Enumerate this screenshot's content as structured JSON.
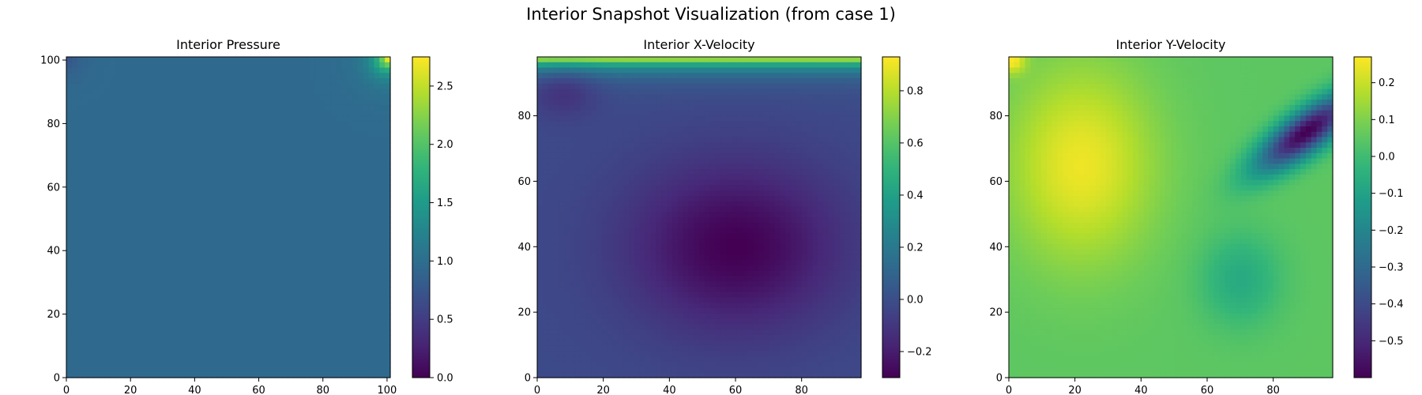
{
  "figure": {
    "title": "Interior Snapshot Visualization (from case 1)"
  },
  "chart_data": [
    {
      "type": "heatmap",
      "title": "Interior Pressure",
      "colormap": "viridis",
      "xlim": [
        0,
        101
      ],
      "ylim": [
        0,
        101
      ],
      "xticks": [
        0,
        20,
        40,
        60,
        80,
        100
      ],
      "yticks": [
        0,
        20,
        40,
        60,
        80,
        100
      ],
      "colorbar": {
        "min": 0.0,
        "max": 2.75,
        "ticks": [
          0.0,
          0.5,
          1.0,
          1.5,
          2.0,
          2.5
        ],
        "tick_labels": [
          "0.0",
          "0.5",
          "1.0",
          "1.5",
          "2.0",
          "2.5"
        ]
      },
      "field": "pressure",
      "values": {
        "background": 0.95,
        "features": [
          {
            "x": 100,
            "y": 100,
            "value": 2.75,
            "spread": 3.5
          },
          {
            "x": 0,
            "y": 100,
            "value": 0.7,
            "spread": 4
          }
        ]
      }
    },
    {
      "type": "heatmap",
      "title": "Interior X-Velocity",
      "colormap": "viridis",
      "xlim": [
        0,
        98
      ],
      "ylim": [
        0,
        98
      ],
      "xticks": [
        0,
        20,
        40,
        60,
        80
      ],
      "yticks": [
        0,
        20,
        40,
        60,
        80
      ],
      "colorbar": {
        "min": -0.3,
        "max": 0.93,
        "ticks": [
          -0.2,
          0.0,
          0.2,
          0.4,
          0.6,
          0.8
        ],
        "tick_labels": [
          "−0.2",
          "0.0",
          "0.2",
          "0.4",
          "0.6",
          "0.8"
        ]
      },
      "field": "x-velocity",
      "values": {
        "lid_value": 0.93,
        "core_min": {
          "x": 60,
          "y": 40,
          "value": -0.3
        },
        "background": -0.02
      }
    },
    {
      "type": "heatmap",
      "title": "Interior Y-Velocity",
      "colormap": "viridis",
      "xlim": [
        0,
        98
      ],
      "ylim": [
        0,
        98
      ],
      "xticks": [
        0,
        20,
        40,
        60,
        80
      ],
      "yticks": [
        0,
        20,
        40,
        60,
        80
      ],
      "colorbar": {
        "min": -0.6,
        "max": 0.27,
        "ticks": [
          -0.5,
          -0.4,
          -0.3,
          -0.2,
          -0.1,
          0.0,
          0.1,
          0.2
        ],
        "tick_labels": [
          "−0.5",
          "−0.4",
          "−0.3",
          "−0.2",
          "−0.1",
          "0.0",
          "0.1",
          "0.2"
        ]
      },
      "field": "y-velocity",
      "values": {
        "max_region": {
          "x": 22,
          "y": 65,
          "value": 0.25
        },
        "min_region": {
          "x": 90,
          "y": 75,
          "value": -0.6
        },
        "background": 0.05
      }
    }
  ]
}
